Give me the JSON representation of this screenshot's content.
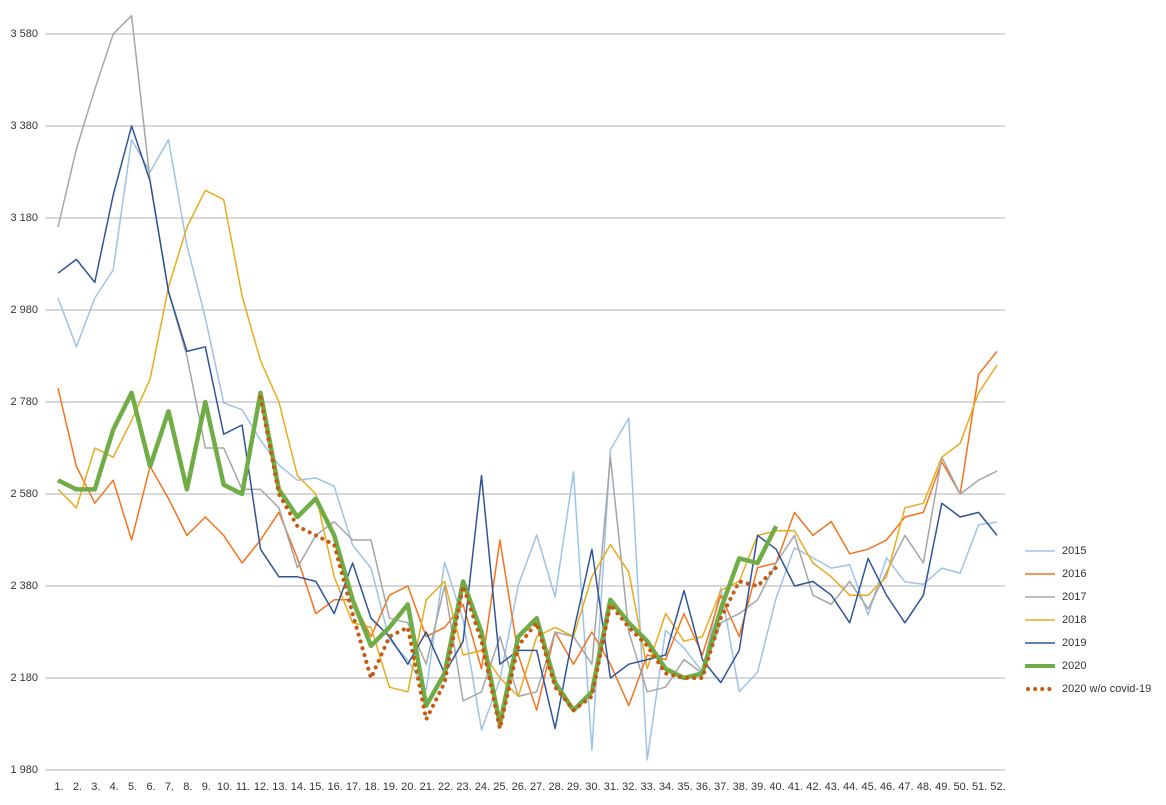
{
  "chart_data": {
    "type": "line",
    "categories": [
      "1.",
      "2.",
      "3.",
      "4.",
      "5.",
      "6.",
      "7.",
      "8.",
      "9.",
      "10.",
      "11.",
      "12.",
      "13.",
      "14.",
      "15.",
      "16.",
      "17.",
      "18.",
      "19.",
      "20.",
      "21.",
      "22.",
      "23.",
      "24.",
      "25.",
      "26.",
      "27.",
      "28.",
      "29.",
      "30.",
      "31.",
      "32.",
      "33.",
      "34.",
      "35.",
      "36.",
      "37.",
      "38.",
      "39.",
      "40.",
      "41.",
      "42.",
      "43.",
      "44.",
      "45.",
      "46.",
      "47.",
      "48.",
      "49.",
      "50.",
      "51.",
      "52."
    ],
    "ylim": [
      1980,
      3640
    ],
    "yticks": [
      {
        "value": 1980,
        "label": "1 980"
      },
      {
        "value": 2180,
        "label": "2 180"
      },
      {
        "value": 2380,
        "label": "2 380"
      },
      {
        "value": 2580,
        "label": "2 580"
      },
      {
        "value": 2780,
        "label": "2 780"
      },
      {
        "value": 2980,
        "label": "2 980"
      },
      {
        "value": 3180,
        "label": "3 180"
      },
      {
        "value": 3380,
        "label": "3 380"
      },
      {
        "value": 3580,
        "label": "3 580"
      }
    ],
    "grid": true,
    "legend": "right",
    "series": [
      {
        "name": "2015",
        "color": "#9dc3e6",
        "line_width": 1.5,
        "values": [
          3006,
          2900,
          3006,
          3067,
          3350,
          3280,
          3350,
          3121,
          2963,
          2778,
          2763,
          2697,
          2643,
          2610,
          2615,
          2597,
          2469,
          2419,
          2263,
          2219,
          2154,
          2432,
          2306,
          2067,
          2176,
          2382,
          2491,
          2356,
          2628,
          2023,
          2676,
          2745,
          2002,
          2284,
          2245,
          2193,
          2376,
          2150,
          2193,
          2354,
          2463,
          2441,
          2419,
          2426,
          2317,
          2441,
          2389,
          2384,
          2419,
          2408,
          2513,
          2519
        ]
      },
      {
        "name": "2016",
        "color": "#f4731f",
        "line_width": 1.5,
        "values": [
          2810,
          2640,
          2560,
          2610,
          2480,
          2640,
          2570,
          2490,
          2530,
          2490,
          2430,
          2480,
          2540,
          2440,
          2320,
          2350,
          2350,
          2270,
          2360,
          2380,
          2270,
          2290,
          2340,
          2200,
          2480,
          2230,
          2110,
          2280,
          2210,
          2280,
          2210,
          2120,
          2230,
          2220,
          2320,
          2230,
          2360,
          2270,
          2420,
          2430,
          2540,
          2490,
          2520,
          2450,
          2460,
          2480,
          2530,
          2540,
          2650,
          2580,
          2840,
          2890
        ]
      },
      {
        "name": "2017",
        "color": "#a5a5a5",
        "line_width": 1.5,
        "values": [
          3160,
          3330,
          3460,
          3580,
          3620,
          3260,
          3020,
          2880,
          2680,
          2680,
          2590,
          2590,
          2550,
          2420,
          2490,
          2520,
          2480,
          2480,
          2310,
          2300,
          2210,
          2380,
          2130,
          2150,
          2270,
          2140,
          2150,
          2280,
          2270,
          2210,
          2660,
          2280,
          2150,
          2160,
          2220,
          2190,
          2300,
          2320,
          2350,
          2430,
          2490,
          2360,
          2340,
          2390,
          2330,
          2410,
          2490,
          2430,
          2660,
          2580,
          2610,
          2630
        ]
      },
      {
        "name": "2018",
        "color": "#e8ab1e",
        "line_width": 1.5,
        "values": [
          2590,
          2550,
          2680,
          2660,
          2740,
          2830,
          3030,
          3160,
          3240,
          3220,
          3010,
          2870,
          2780,
          2620,
          2580,
          2400,
          2300,
          2290,
          2160,
          2150,
          2350,
          2390,
          2230,
          2240,
          2180,
          2140,
          2270,
          2290,
          2270,
          2400,
          2470,
          2410,
          2200,
          2320,
          2260,
          2270,
          2370,
          2390,
          2490,
          2500,
          2500,
          2430,
          2400,
          2360,
          2360,
          2400,
          2550,
          2560,
          2660,
          2690,
          2800,
          2860
        ]
      },
      {
        "name": "2019",
        "color": "#2f5597",
        "line_width": 1.5,
        "values": [
          3060,
          3090,
          3040,
          3230,
          3380,
          3260,
          3020,
          2890,
          2900,
          2710,
          2730,
          2460,
          2400,
          2400,
          2390,
          2320,
          2430,
          2310,
          2270,
          2210,
          2280,
          2190,
          2260,
          2620,
          2210,
          2240,
          2240,
          2070,
          2280,
          2460,
          2180,
          2210,
          2220,
          2230,
          2370,
          2220,
          2170,
          2240,
          2490,
          2460,
          2380,
          2390,
          2360,
          2300,
          2440,
          2360,
          2300,
          2360,
          2560,
          2530,
          2540,
          2490
        ]
      },
      {
        "name": "2020",
        "color": "#70ad47",
        "line_width": 4.5,
        "values": [
          2610,
          2590,
          2590,
          2720,
          2800,
          2640,
          2760,
          2590,
          2780,
          2600,
          2580,
          2800,
          2590,
          2530,
          2570,
          2490,
          2350,
          2250,
          2290,
          2340,
          2120,
          2190,
          2390,
          2280,
          2080,
          2270,
          2310,
          2170,
          2110,
          2150,
          2350,
          2300,
          2260,
          2200,
          2180,
          2190,
          2330,
          2440,
          2430,
          2510,
          null,
          null,
          null,
          null,
          null,
          null,
          null,
          null,
          null,
          null,
          null,
          null
        ]
      },
      {
        "name": "2020 w/o covid-19",
        "color": "#c55a11",
        "line_width": 4,
        "line_style": "dotted",
        "values": [
          null,
          null,
          null,
          null,
          null,
          null,
          null,
          null,
          null,
          null,
          null,
          2790,
          2580,
          2510,
          2490,
          2470,
          2320,
          2180,
          2270,
          2290,
          2090,
          2170,
          2380,
          2260,
          2070,
          2250,
          2300,
          2160,
          2110,
          2140,
          2340,
          2290,
          2250,
          2190,
          2180,
          2180,
          2310,
          2390,
          2380,
          2420,
          null,
          null,
          null,
          null,
          null,
          null,
          null,
          null,
          null,
          null,
          null,
          null
        ]
      }
    ]
  }
}
